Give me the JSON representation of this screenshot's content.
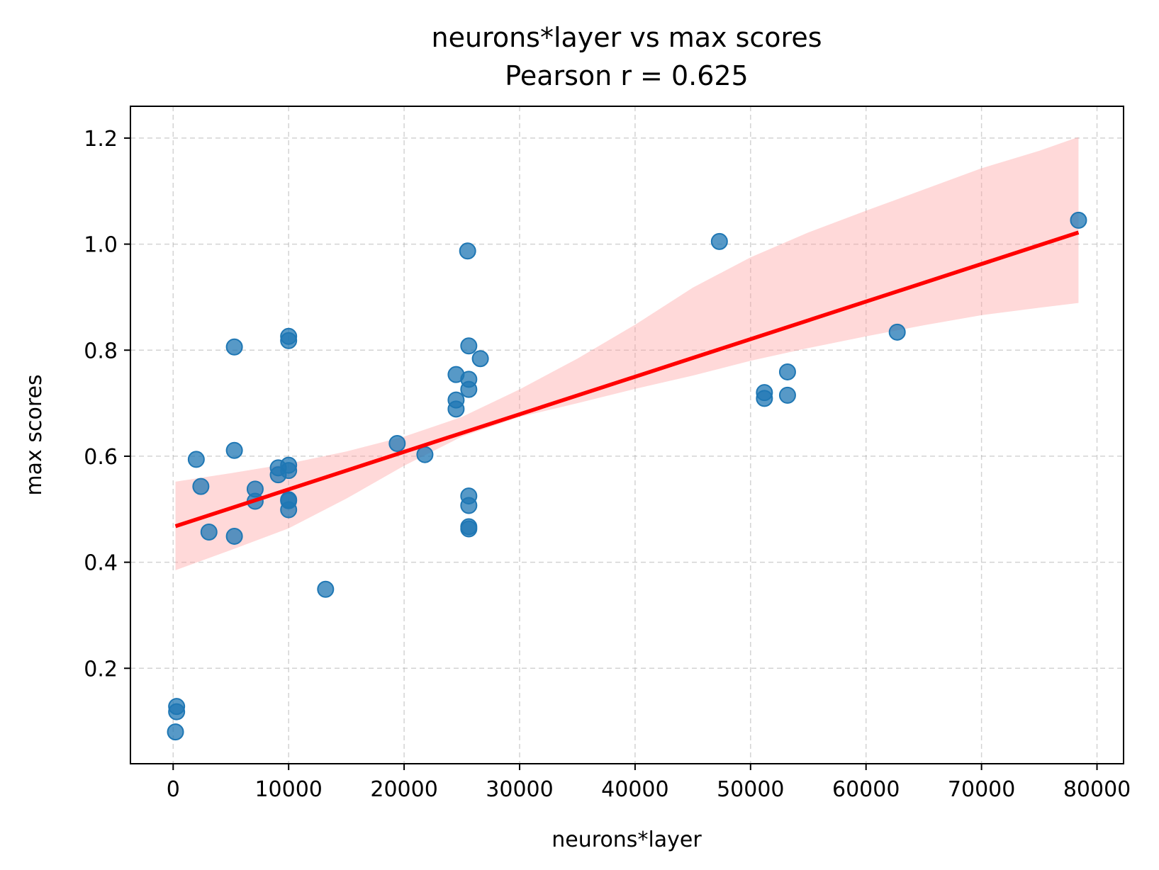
{
  "chart_data": {
    "type": "scatter",
    "title": "neurons*layer vs max scores",
    "subtitle": "Pearson r = 0.625",
    "xlabel": "neurons*layer",
    "ylabel": "max scores",
    "xlim": [
      -3700,
      82300
    ],
    "ylim": [
      0.02,
      1.26
    ],
    "xticks": [
      0,
      10000,
      20000,
      30000,
      40000,
      50000,
      60000,
      70000,
      80000
    ],
    "yticks": [
      0.2,
      0.4,
      0.6,
      0.8,
      1.0,
      1.2
    ],
    "ytick_labels": [
      "0.2",
      "0.4",
      "0.6",
      "0.8",
      "1.0",
      "1.2"
    ],
    "grid": true,
    "points": [
      {
        "x": 300,
        "y": 0.128
      },
      {
        "x": 300,
        "y": 0.118
      },
      {
        "x": 200,
        "y": 0.08
      },
      {
        "x": 2000,
        "y": 0.594
      },
      {
        "x": 2400,
        "y": 0.543
      },
      {
        "x": 3100,
        "y": 0.457
      },
      {
        "x": 5300,
        "y": 0.806
      },
      {
        "x": 5300,
        "y": 0.611
      },
      {
        "x": 5300,
        "y": 0.449
      },
      {
        "x": 7100,
        "y": 0.538
      },
      {
        "x": 7100,
        "y": 0.515
      },
      {
        "x": 9100,
        "y": 0.578
      },
      {
        "x": 9100,
        "y": 0.565
      },
      {
        "x": 10000,
        "y": 0.826
      },
      {
        "x": 10000,
        "y": 0.818
      },
      {
        "x": 10000,
        "y": 0.583
      },
      {
        "x": 10000,
        "y": 0.573
      },
      {
        "x": 10000,
        "y": 0.518
      },
      {
        "x": 10000,
        "y": 0.516
      },
      {
        "x": 10000,
        "y": 0.499
      },
      {
        "x": 13200,
        "y": 0.349
      },
      {
        "x": 19400,
        "y": 0.624
      },
      {
        "x": 21800,
        "y": 0.603
      },
      {
        "x": 24500,
        "y": 0.754
      },
      {
        "x": 24500,
        "y": 0.706
      },
      {
        "x": 24500,
        "y": 0.689
      },
      {
        "x": 25500,
        "y": 0.987
      },
      {
        "x": 25600,
        "y": 0.808
      },
      {
        "x": 25600,
        "y": 0.745
      },
      {
        "x": 25600,
        "y": 0.726
      },
      {
        "x": 26600,
        "y": 0.784
      },
      {
        "x": 25600,
        "y": 0.525
      },
      {
        "x": 25600,
        "y": 0.507
      },
      {
        "x": 25600,
        "y": 0.467
      },
      {
        "x": 25600,
        "y": 0.463
      },
      {
        "x": 47300,
        "y": 1.005
      },
      {
        "x": 51200,
        "y": 0.72
      },
      {
        "x": 51200,
        "y": 0.709
      },
      {
        "x": 53200,
        "y": 0.759
      },
      {
        "x": 53200,
        "y": 0.715
      },
      {
        "x": 62700,
        "y": 0.834
      },
      {
        "x": 78400,
        "y": 1.045
      }
    ],
    "regression": {
      "x": [
        200,
        78400
      ],
      "y": [
        0.468,
        1.022
      ],
      "ci_x": [
        200,
        5000,
        10000,
        15000,
        20000,
        25000,
        30000,
        35000,
        40000,
        45000,
        50000,
        55000,
        60000,
        65000,
        70000,
        75000,
        78400
      ],
      "ci_upper": [
        0.552,
        0.568,
        0.586,
        0.609,
        0.637,
        0.674,
        0.726,
        0.784,
        0.848,
        0.918,
        0.975,
        1.022,
        1.063,
        1.103,
        1.143,
        1.176,
        1.202
      ],
      "ci_lower": [
        0.385,
        0.423,
        0.464,
        0.52,
        0.582,
        0.637,
        0.674,
        0.7,
        0.727,
        0.752,
        0.78,
        0.804,
        0.826,
        0.847,
        0.866,
        0.88,
        0.889
      ]
    },
    "colors": {
      "points": "#1f77b4",
      "line": "#ff0000",
      "band": "#ff9a9a"
    }
  }
}
